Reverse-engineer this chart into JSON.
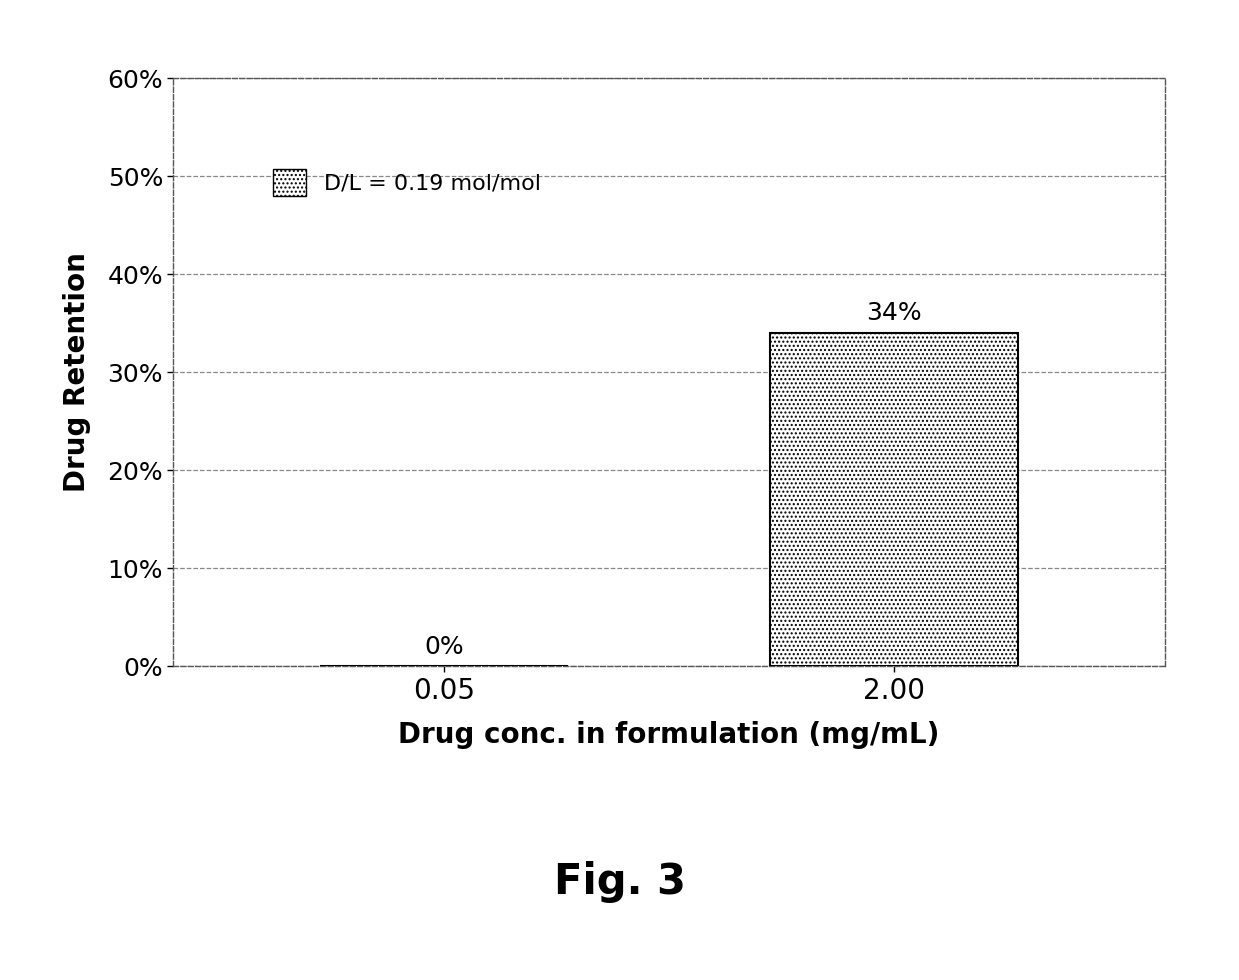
{
  "categories": [
    "0.05",
    "2.00"
  ],
  "values": [
    0.0,
    0.34
  ],
  "bar_labels": [
    "0%",
    "34%"
  ],
  "xlabel": "Drug conc. in formulation (mg/mL)",
  "ylabel": "Drug Retention",
  "ylim": [
    0,
    0.6
  ],
  "yticks": [
    0.0,
    0.1,
    0.2,
    0.3,
    0.4,
    0.5,
    0.6
  ],
  "ytick_labels": [
    "0%",
    "10%",
    "20%",
    "30%",
    "40%",
    "50%",
    "60%"
  ],
  "legend_label": "D/L = 0.19 mol/mol",
  "figure_caption": "Fig. 3",
  "background_color": "#ffffff",
  "bar_hatch": "....",
  "bar_color": "#ffffff",
  "bar_edge_color": "#000000",
  "grid_color": "#888888",
  "axis_label_fontsize": 20,
  "tick_fontsize": 18,
  "bar_label_fontsize": 18,
  "legend_fontsize": 16,
  "caption_fontsize": 30
}
